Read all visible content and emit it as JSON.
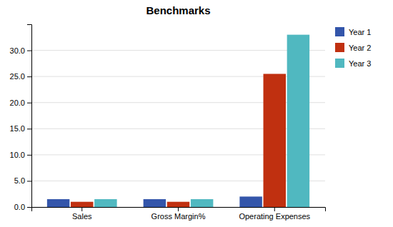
{
  "chart_data": {
    "type": "bar",
    "title": "Benchmarks",
    "categories": [
      "Sales",
      "Gross Margin%",
      "Operating Expenses"
    ],
    "series": [
      {
        "name": "Year 1",
        "color": "#3355AA",
        "values": [
          1.5,
          1.5,
          2.0
        ]
      },
      {
        "name": "Year 2",
        "color": "#C03010",
        "values": [
          1.0,
          1.0,
          25.5
        ]
      },
      {
        "name": "Year 3",
        "color": "#50B8C0",
        "values": [
          1.5,
          1.5,
          33.0
        ]
      }
    ],
    "ylim": [
      0,
      35
    ],
    "yticks": [
      {
        "value": 0,
        "label": "0.0"
      },
      {
        "value": 5,
        "label": "5.0"
      },
      {
        "value": 10,
        "label": "10.0"
      },
      {
        "value": 15,
        "label": "15.0"
      },
      {
        "value": 20,
        "label": "20.0"
      },
      {
        "value": 25,
        "label": "25.0"
      },
      {
        "value": 30,
        "label": "30.0"
      }
    ],
    "grid": true,
    "legend": "right"
  }
}
